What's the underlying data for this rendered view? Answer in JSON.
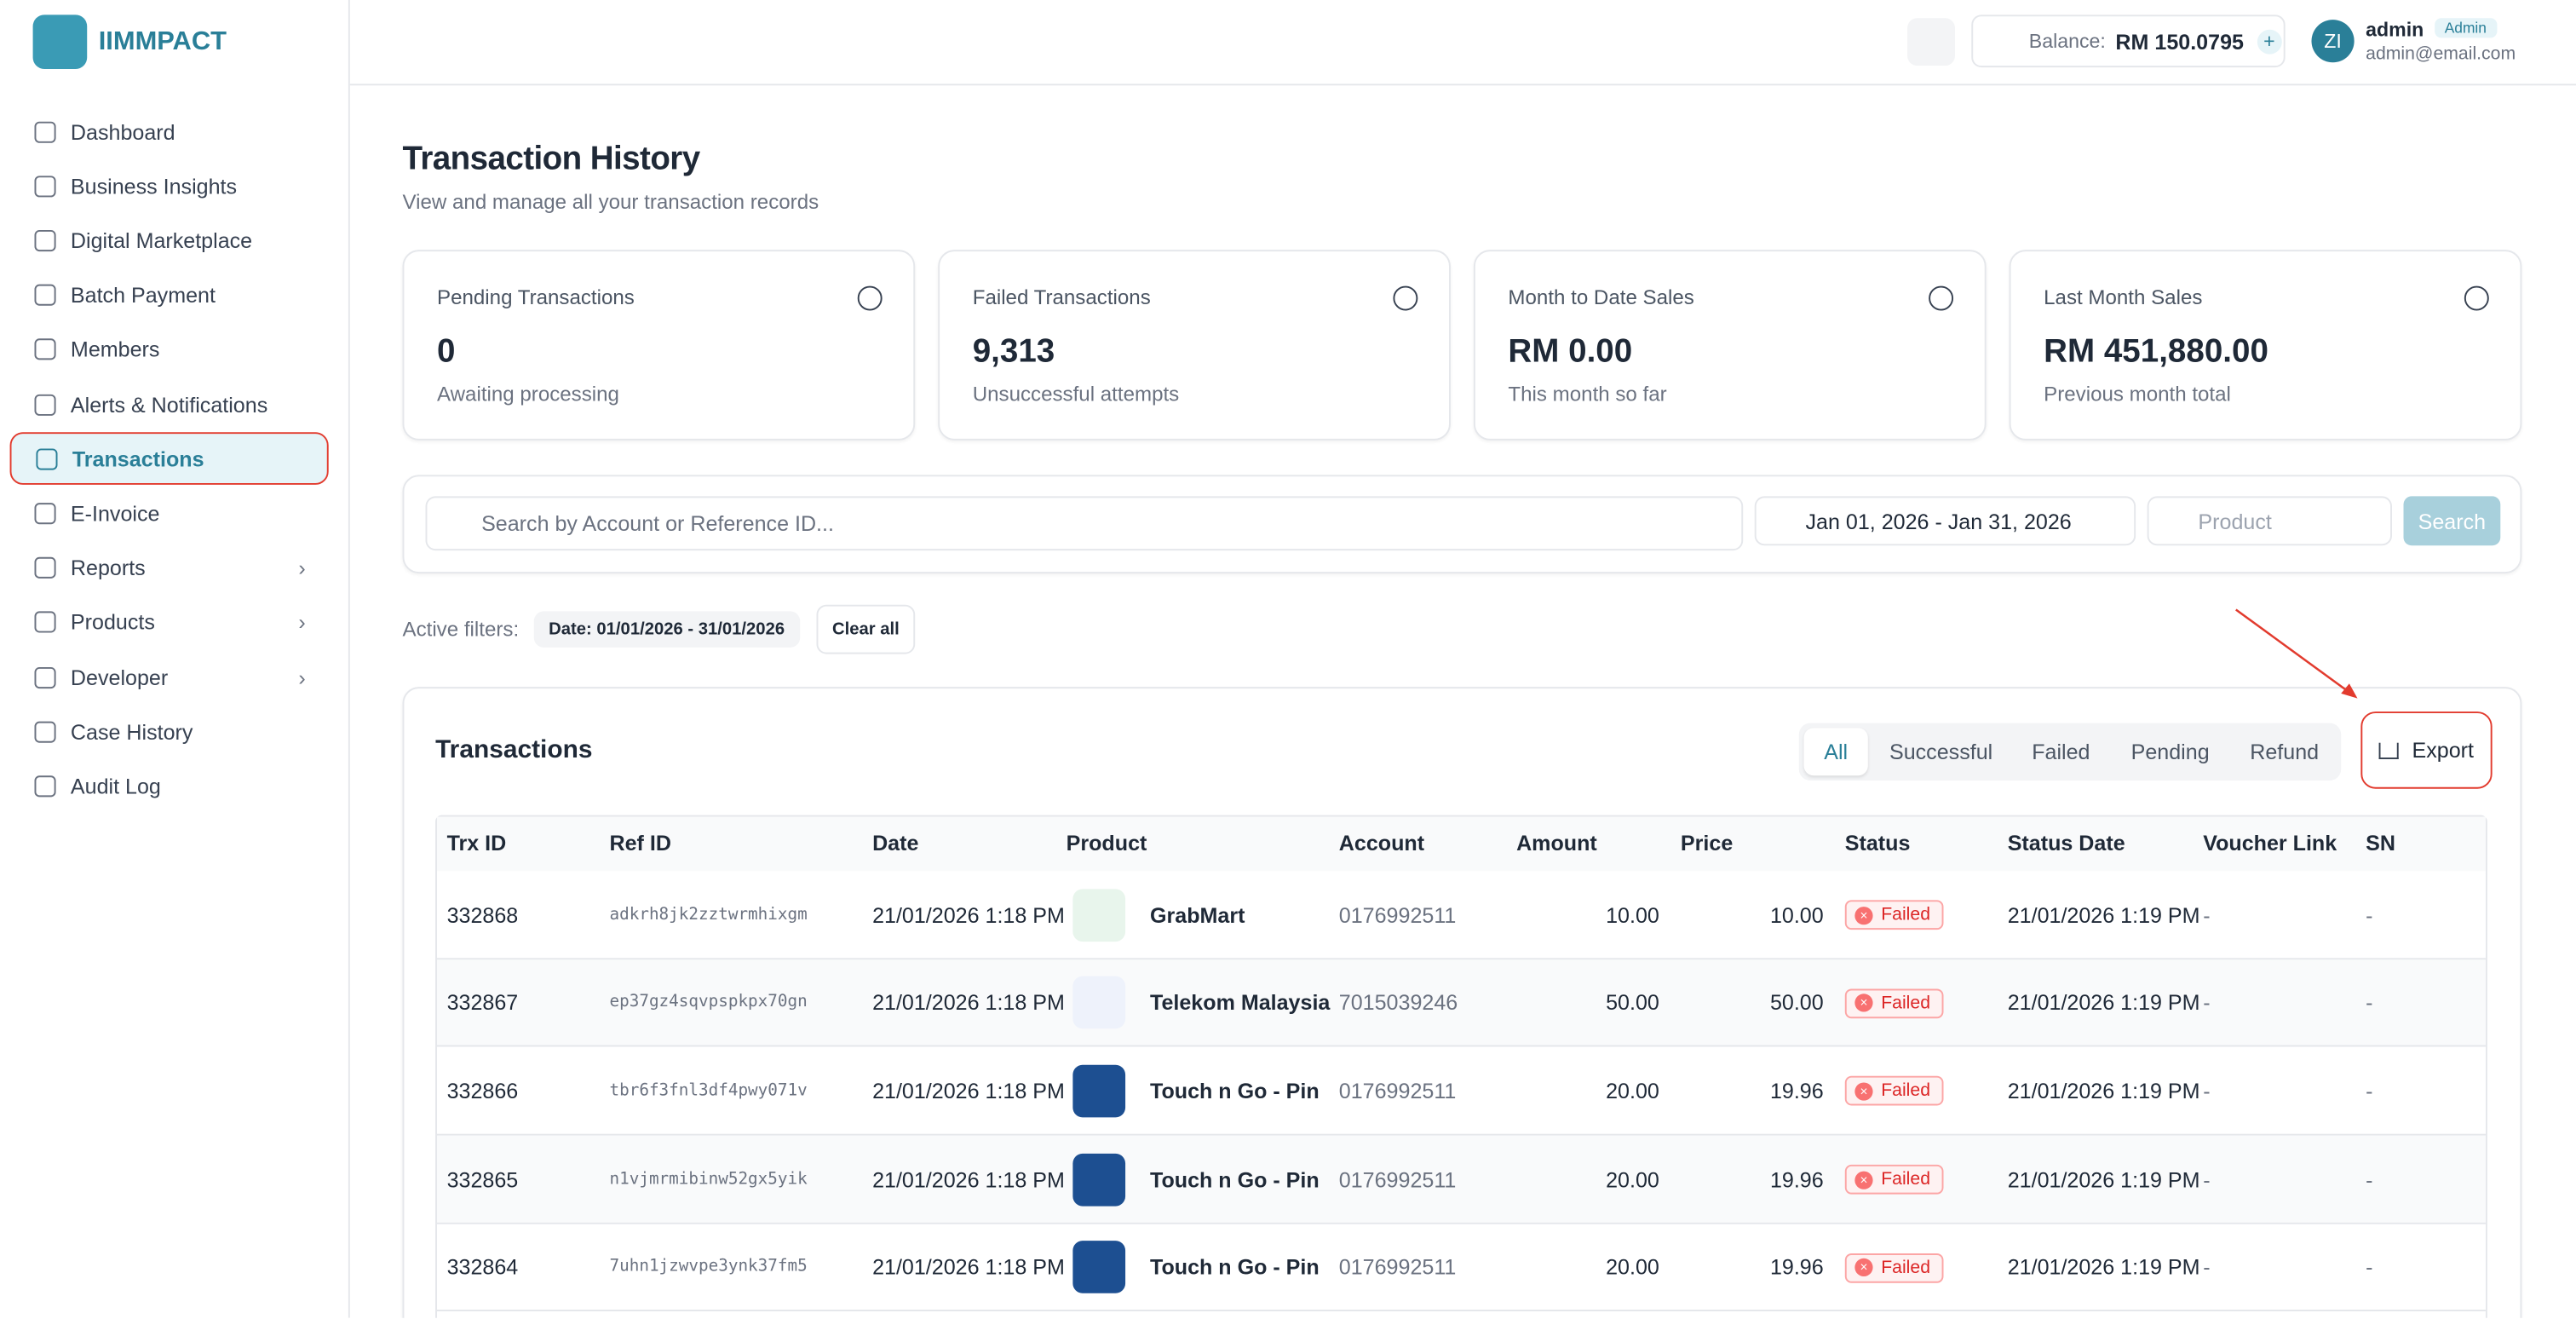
{
  "sidebar": {
    "brand": "IIMMPACT",
    "nav": [
      "Dashboard",
      "Business Insights",
      "Digital Marketplace",
      "Batch Payment",
      "Members",
      "Alerts & Notifications",
      "Transactions",
      "E-Invoice",
      "Reports",
      "Products",
      "Developer",
      "Case History",
      "Audit Log"
    ]
  },
  "header": {
    "balance_label": "Balance:",
    "balance": "RM 150.0795",
    "avatar": "ZI",
    "user_name": "admin",
    "role": "Admin",
    "email": "admin@email.com"
  },
  "page": {
    "title": "Transaction History",
    "subtitle": "View and manage all your transaction records"
  },
  "stats": [
    {
      "label": "Pending Transactions",
      "value": "0",
      "caption": "Awaiting processing"
    },
    {
      "label": "Failed Transactions",
      "value": "9,313",
      "caption": "Unsuccessful attempts"
    },
    {
      "label": "Month to Date Sales",
      "value": "RM 0.00",
      "caption": "This month so far"
    },
    {
      "label": "Last Month Sales",
      "value": "RM 451,880.00",
      "caption": "Previous month total"
    }
  ],
  "filters": {
    "search_placeholder": "Search by Account or Reference ID...",
    "date_range": "Jan 01, 2026 - Jan 31, 2026",
    "product_placeholder": "Product",
    "search_button": "Search",
    "active_label": "Active filters:",
    "date_chip": "Date: 01/01/2026 - 31/01/2026",
    "clear_all": "Clear all"
  },
  "transactions": {
    "title": "Transactions",
    "tabs": [
      "All",
      "Successful",
      "Failed",
      "Pending",
      "Refund"
    ],
    "export": "Export",
    "columns": [
      "Trx ID",
      "Ref ID",
      "Date",
      "Product",
      "Account",
      "Amount",
      "Price",
      "Status",
      "Status Date",
      "Voucher Link",
      "SN"
    ],
    "rows": [
      [
        "332868",
        "adkrh8jk2zztwrmhixgm",
        "21/01/2026 1:18 PM",
        "GrabMart",
        "0176992511",
        "10.00",
        "10.00",
        "Failed",
        "21/01/2026 1:19 PM",
        "-",
        "-"
      ],
      [
        "332867",
        "ep37gz4sqvpspkpx70gn",
        "21/01/2026 1:18 PM",
        "Telekom Malaysia",
        "7015039246",
        "50.00",
        "50.00",
        "Failed",
        "21/01/2026 1:19 PM",
        "-",
        "-"
      ],
      [
        "332866",
        "tbr6f3fnl3df4pwy071v",
        "21/01/2026 1:18 PM",
        "Touch n Go - Pin",
        "0176992511",
        "20.00",
        "19.96",
        "Failed",
        "21/01/2026 1:19 PM",
        "-",
        "-"
      ],
      [
        "332865",
        "n1vjmrmibinw52gx5yik",
        "21/01/2026 1:18 PM",
        "Touch n Go - Pin",
        "0176992511",
        "20.00",
        "19.96",
        "Failed",
        "21/01/2026 1:19 PM",
        "-",
        "-"
      ],
      [
        "332864",
        "7uhn1jzwvpe3ynk37fm5",
        "21/01/2026 1:18 PM",
        "Touch n Go - Pin",
        "0176992511",
        "20.00",
        "19.96",
        "Failed",
        "21/01/2026 1:19 PM",
        "-",
        "-"
      ]
    ]
  }
}
